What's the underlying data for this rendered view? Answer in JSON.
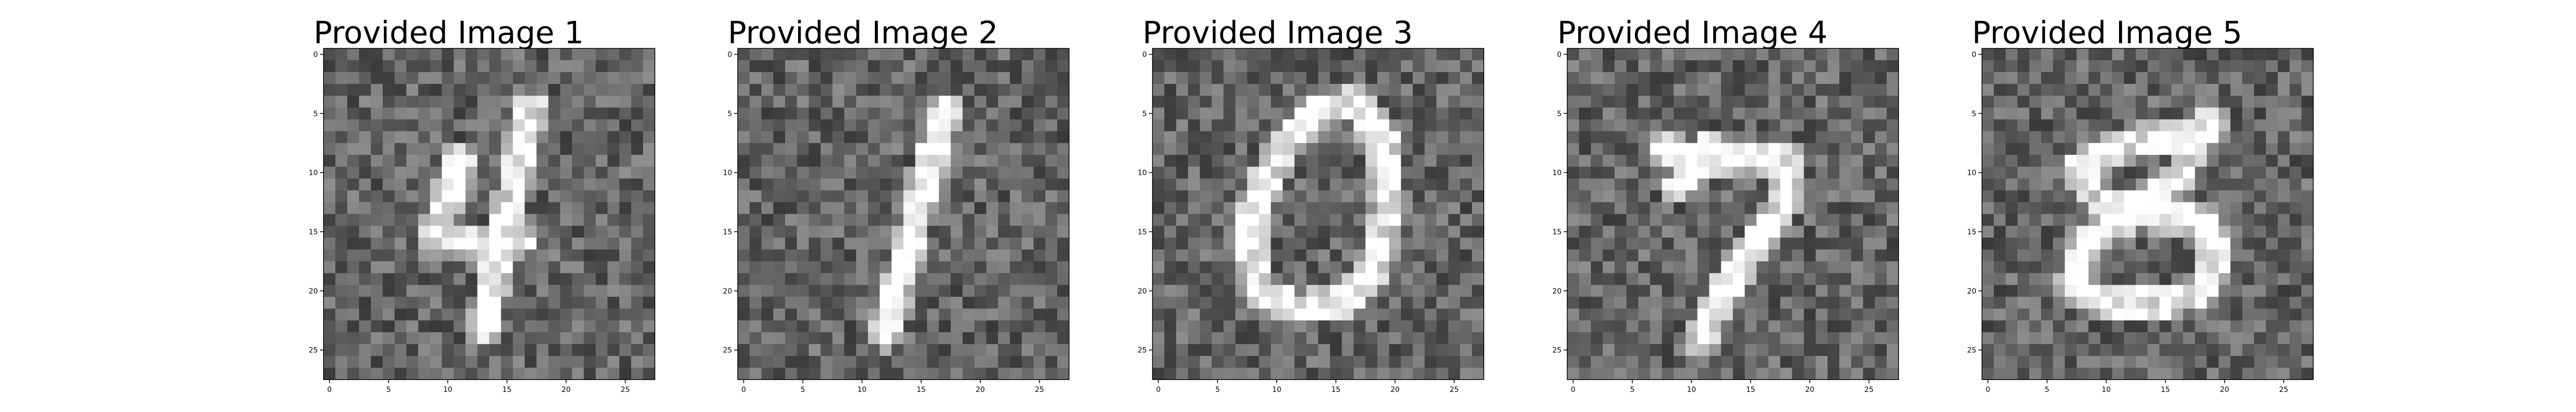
{
  "figure": {
    "panels": [
      {
        "title": "Provided Image 1",
        "digit_glyph": "4",
        "noise_seed": 11
      },
      {
        "title": "Provided Image 2",
        "digit_glyph": "1",
        "noise_seed": 23
      },
      {
        "title": "Provided Image 3",
        "digit_glyph": "0",
        "noise_seed": 37
      },
      {
        "title": "Provided Image 4",
        "digit_glyph": "7",
        "noise_seed": 41
      },
      {
        "title": "Provided Image 5",
        "digit_glyph": "8",
        "noise_seed": 53
      }
    ],
    "axis": {
      "x_ticks": [
        0,
        5,
        10,
        15,
        20,
        25
      ],
      "y_ticks": [
        0,
        5,
        10,
        15,
        20,
        25
      ],
      "grid_size": 28
    },
    "colormap": "gray"
  }
}
